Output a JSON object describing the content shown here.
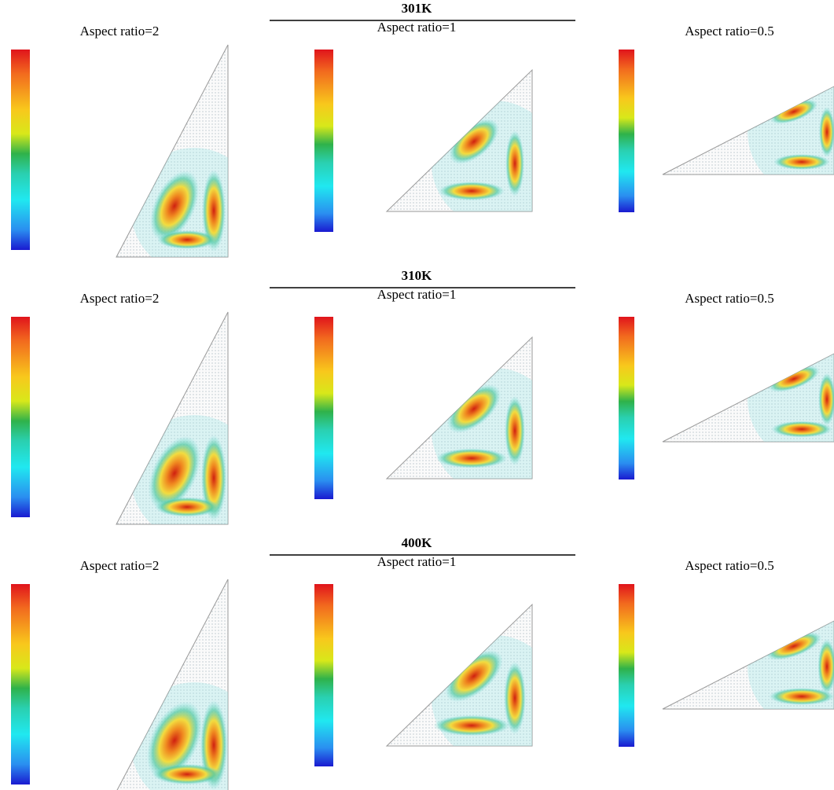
{
  "rows": [
    {
      "title": "301K",
      "panels": [
        {
          "label": "Aspect ratio=2"
        },
        {
          "label": "Aspect ratio=1"
        },
        {
          "label": "Aspect ratio=0.5"
        }
      ]
    },
    {
      "title": "310K",
      "panels": [
        {
          "label": "Aspect ratio=2"
        },
        {
          "label": "Aspect ratio=1"
        },
        {
          "label": "Aspect ratio=0.5"
        }
      ]
    },
    {
      "title": "400K",
      "panels": [
        {
          "label": "Aspect ratio=2"
        },
        {
          "label": "Aspect ratio=1"
        },
        {
          "label": "Aspect ratio=0.5"
        }
      ]
    }
  ]
}
